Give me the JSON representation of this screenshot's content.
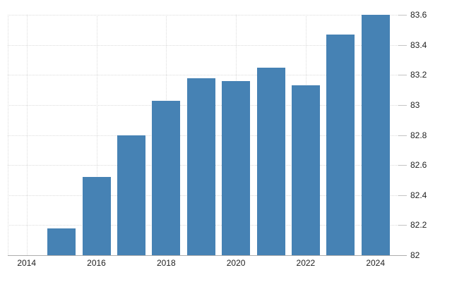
{
  "chart_data": {
    "type": "bar",
    "title": "",
    "xlabel": "",
    "ylabel": "",
    "x": [
      2015,
      2016,
      2017,
      2018,
      2019,
      2020,
      2021,
      2022,
      2023,
      2024
    ],
    "values": [
      82.18,
      82.52,
      82.8,
      83.03,
      83.18,
      83.16,
      83.25,
      83.13,
      83.47,
      83.6
    ],
    "ylim": [
      82,
      83.6
    ],
    "y_tick_values": [
      82,
      82.2,
      82.4,
      82.6,
      82.8,
      83,
      83.2,
      83.4,
      83.6
    ],
    "y_tick_labels": [
      "82",
      "82.2",
      "82.4",
      "82.6",
      "82.8",
      "83",
      "83.2",
      "83.4",
      "83.6"
    ],
    "x_tick_values": [
      2014,
      2016,
      2018,
      2020,
      2022,
      2024
    ],
    "x_tick_labels": [
      "2014",
      "2016",
      "2018",
      "2020",
      "2022",
      "2024"
    ],
    "grid": "dotted",
    "legend": "none",
    "y_axis_position": "right",
    "colors": {
      "bar": "#4682b4",
      "gridline": "#dcdcdc",
      "axis_line": "#adadad",
      "tick_dash": "#c4c4c4",
      "label_text": "#1f1f1f",
      "background": "#ffffff"
    }
  }
}
